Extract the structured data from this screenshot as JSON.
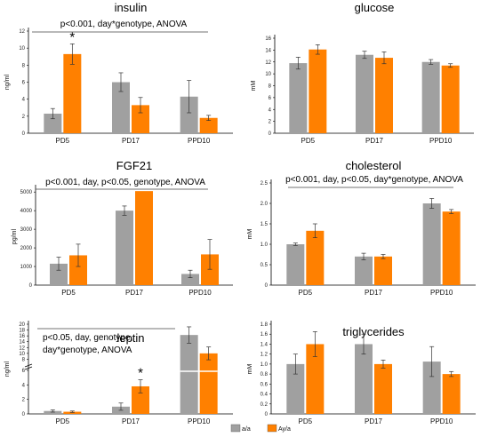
{
  "colors": {
    "a_a": "#a0a0a0",
    "Ay_a": "#ff8000",
    "axis": "#000000",
    "err": "#333333"
  },
  "legend": {
    "items": [
      {
        "label": "a/a",
        "color": "#a0a0a0"
      },
      {
        "label": "Ay/a",
        "color": "#ff8000"
      }
    ]
  },
  "chart_data": [
    {
      "type": "bar",
      "title": "insulin",
      "ylabel": "ng/ml",
      "annotation": "p<0.001, day*genotype, ANOVA",
      "categories": [
        "PD5",
        "PD17",
        "PPD10"
      ],
      "ylim": [
        0,
        12
      ],
      "yticks": [
        0,
        2,
        4,
        6,
        8,
        10,
        12
      ],
      "series": [
        {
          "name": "a/a",
          "values": [
            2.3,
            6.0,
            4.3
          ],
          "errors": [
            0.6,
            1.1,
            1.9
          ]
        },
        {
          "name": "Ay/a",
          "values": [
            9.3,
            3.3,
            1.8
          ],
          "errors": [
            1.2,
            0.9,
            0.3
          ]
        }
      ],
      "significance": [
        {
          "category": "PD5",
          "label": "*"
        }
      ]
    },
    {
      "type": "bar",
      "title": "glucose",
      "ylabel": "mM",
      "categories": [
        "PD5",
        "PD17",
        "PPD10"
      ],
      "ylim": [
        0,
        16
      ],
      "yticks": [
        0,
        2,
        4,
        6,
        8,
        10,
        12,
        14,
        16
      ],
      "series": [
        {
          "name": "a/a",
          "values": [
            11.8,
            13.2,
            12.0
          ],
          "errors": [
            1.0,
            0.6,
            0.4
          ]
        },
        {
          "name": "Ay/a",
          "values": [
            14.1,
            12.7,
            11.4
          ],
          "errors": [
            0.8,
            1.0,
            0.3
          ]
        }
      ]
    },
    {
      "type": "bar",
      "title": "FGF21",
      "ylabel": "pg/ml",
      "annotation": "p<0.001, day, p<0.05, genotype, ANOVA",
      "categories": [
        "PD5",
        "PD17",
        "PPD10"
      ],
      "ylim": [
        0,
        5200
      ],
      "yticks": [
        0,
        1000,
        2000,
        3000,
        4000,
        5000
      ],
      "series": [
        {
          "name": "a/a",
          "values": [
            1150,
            4000,
            600
          ],
          "errors": [
            350,
            250,
            200
          ]
        },
        {
          "name": "Ay/a",
          "values": [
            1600,
            5050,
            1650
          ],
          "errors": [
            600,
            0,
            800
          ]
        }
      ]
    },
    {
      "type": "bar",
      "title": "cholesterol",
      "ylabel": "mM",
      "annotation": "p<0.001, day, p<0.05, day*genotype, ANOVA",
      "categories": [
        "PD5",
        "PD17",
        "PPD10"
      ],
      "ylim": [
        0,
        2.5
      ],
      "yticks": [
        0,
        0.5,
        1.0,
        1.5,
        2.0,
        2.5
      ],
      "yticklabels": [
        "0",
        "0.5",
        "1.0",
        "1.5",
        "2.0",
        "2.5"
      ],
      "series": [
        {
          "name": "a/a",
          "values": [
            1.0,
            0.7,
            2.0
          ],
          "errors": [
            0.03,
            0.08,
            0.12
          ]
        },
        {
          "name": "Ay/a",
          "values": [
            1.33,
            0.7,
            1.8
          ],
          "errors": [
            0.17,
            0.05,
            0.05
          ]
        }
      ]
    },
    {
      "type": "bar",
      "title": "leptin",
      "ylabel": "ng/ml",
      "annotation": [
        "p<0.05, day, genotype,",
        "day*genotype, ANOVA"
      ],
      "categories": [
        "PD5",
        "PD17",
        "PPD10"
      ],
      "broken_axis": true,
      "ylim_lower": [
        0,
        6
      ],
      "yticks_lower": [
        0,
        2,
        4
      ],
      "ylim_upper": [
        6,
        20
      ],
      "yticks_upper": [
        6,
        8,
        10,
        12,
        14,
        16,
        18,
        20
      ],
      "series": [
        {
          "name": "a/a",
          "values": [
            0.4,
            1.0,
            16.3
          ],
          "errors": [
            0.15,
            0.5,
            2.8
          ]
        },
        {
          "name": "Ay/a",
          "values": [
            0.3,
            3.8,
            10.0
          ],
          "errors": [
            0.1,
            0.9,
            2.2
          ]
        }
      ],
      "significance": [
        {
          "category": "PD17",
          "label": "*"
        }
      ]
    },
    {
      "type": "bar",
      "title": "triglycerides",
      "ylabel": "mM",
      "categories": [
        "PD5",
        "PD17",
        "PPD10"
      ],
      "ylim": [
        0,
        1.8
      ],
      "yticks": [
        0,
        0.2,
        0.4,
        0.6,
        0.8,
        1.0,
        1.2,
        1.4,
        1.6,
        1.8
      ],
      "yticklabels": [
        "0",
        "0.2",
        "0.4",
        "0.6",
        "0.8",
        "1.0",
        "1.2",
        "1.4",
        "1.6",
        "1.8"
      ],
      "series": [
        {
          "name": "a/a",
          "values": [
            1.0,
            1.4,
            1.05
          ],
          "errors": [
            0.2,
            0.2,
            0.3
          ]
        },
        {
          "name": "Ay/a",
          "values": [
            1.4,
            1.0,
            0.8
          ],
          "errors": [
            0.25,
            0.08,
            0.05
          ]
        }
      ]
    }
  ]
}
